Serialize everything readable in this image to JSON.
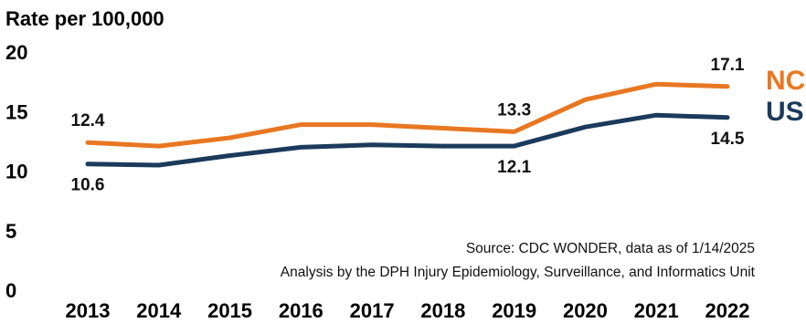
{
  "chart_data": {
    "type": "line",
    "ylabel": "Rate per 100,000",
    "ylim": [
      0,
      20
    ],
    "yticks": [
      "0",
      "5",
      "10",
      "15",
      "20"
    ],
    "categories": [
      "2013",
      "2014",
      "2015",
      "2016",
      "2017",
      "2018",
      "2019",
      "2020",
      "2021",
      "2022"
    ],
    "series": [
      {
        "name": "NC",
        "color": "#E87722",
        "values": [
          12.4,
          12.1,
          12.8,
          13.9,
          13.9,
          13.6,
          13.3,
          16.0,
          17.3,
          17.1
        ]
      },
      {
        "name": "US",
        "color": "#1B3A5C",
        "values": [
          10.6,
          10.5,
          11.3,
          12.0,
          12.2,
          12.1,
          12.1,
          13.7,
          14.7,
          14.5
        ]
      }
    ],
    "data_labels": [
      {
        "series": "NC",
        "category": "2013",
        "text": "12.4"
      },
      {
        "series": "NC",
        "category": "2019",
        "text": "13.3"
      },
      {
        "series": "NC",
        "category": "2022",
        "text": "17.1"
      },
      {
        "series": "US",
        "category": "2013",
        "text": "10.6"
      },
      {
        "series": "US",
        "category": "2019",
        "text": "12.1"
      },
      {
        "series": "US",
        "category": "2022",
        "text": "14.5"
      }
    ],
    "grid": false,
    "legend": "right, labels at line ends"
  },
  "notes": {
    "source": "Source: CDC WONDER, data as of 1/14/2025",
    "analysis": "Analysis by the DPH Injury Epidemiology, Surveillance, and Informatics Unit"
  }
}
